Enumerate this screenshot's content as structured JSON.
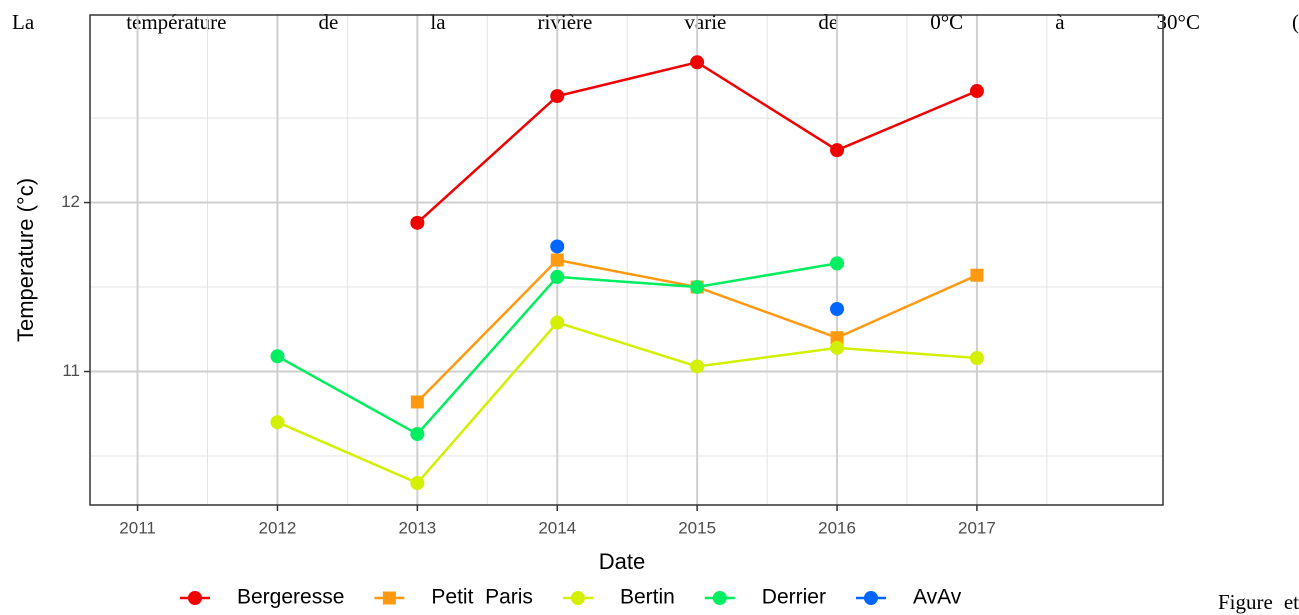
{
  "text_before": "La température de la rivière varie de 0°C à 30°C (",
  "text_after": "Figure et",
  "chart_data": {
    "type": "line",
    "x_label": "Date",
    "y_label": "Temperature (°c)",
    "x": [
      2011,
      2012,
      2013,
      2014,
      2015,
      2016,
      2017
    ],
    "xlim": [
      2010.66,
      2018.33
    ],
    "xticks": [
      2011,
      2012,
      2013,
      2014,
      2015,
      2016,
      2017
    ],
    "ylim": [
      10.21,
      13.11
    ],
    "yticks": [
      11,
      12
    ],
    "grid": true,
    "minor_grid": true,
    "legend": "bottom",
    "series": [
      {
        "name": "Bergeresse",
        "color": "#f00000",
        "values": [
          null,
          null,
          11.88,
          12.63,
          12.83,
          12.31,
          12.66
        ]
      },
      {
        "name": "Petit  Paris",
        "color": "#ff9a10",
        "shape": "square",
        "values": [
          null,
          null,
          10.82,
          11.66,
          11.5,
          11.2,
          11.57
        ]
      },
      {
        "name": "Bertin",
        "color": "#d2f000",
        "values": [
          null,
          10.7,
          10.34,
          11.29,
          11.03,
          11.14,
          11.08
        ]
      },
      {
        "name": "Derrier",
        "color": "#00ee60",
        "values": [
          null,
          11.09,
          10.63,
          11.56,
          11.5,
          11.64,
          null
        ]
      },
      {
        "name": "AvAv",
        "color": "#0066ff",
        "values": [
          null,
          null,
          null,
          11.74,
          null,
          11.37,
          null
        ]
      }
    ]
  }
}
